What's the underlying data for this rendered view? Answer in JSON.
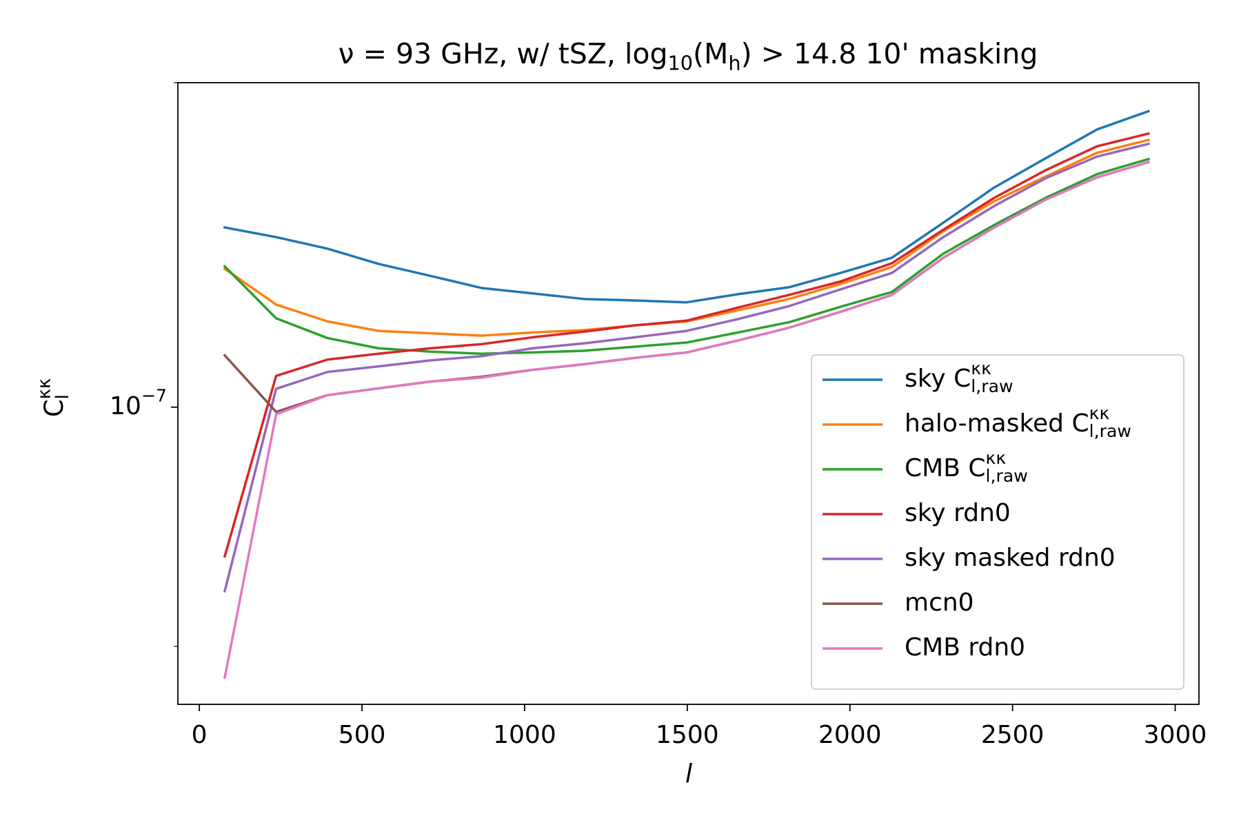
{
  "chart_data": {
    "type": "line",
    "title": "ν = 93 GHz, w/ tSZ, log_{10}(M_{h}) > 14.8 10' masking",
    "xlabel": "l",
    "ylabel": "C_{l}^{κκ}",
    "x": [
      78,
      236,
      394,
      551,
      709,
      867,
      1025,
      1182,
      1340,
      1498,
      1656,
      1813,
      1971,
      2129,
      2287,
      2444,
      2602,
      2760,
      2918
    ],
    "xlim": [
      -66,
      3073
    ],
    "xticks": [
      0,
      500,
      1000,
      1500,
      2000,
      2500,
      3000
    ],
    "ylim": [
      5.3e-08,
      2e-07
    ],
    "yscale": "log",
    "yticks": [
      {
        "value": 1e-07,
        "label": "10^{−7}"
      }
    ],
    "yminorticks": [
      6e-08,
      2e-07
    ],
    "grid": false,
    "legend": "lower right",
    "series": [
      {
        "name": "sky C_{l,raw}^{κκ}",
        "color": "#1f77b4",
        "values": [
          1.468e-07,
          1.438e-07,
          1.403e-07,
          1.358e-07,
          1.324e-07,
          1.29e-07,
          1.275e-07,
          1.26e-07,
          1.256e-07,
          1.251e-07,
          1.273e-07,
          1.292e-07,
          1.332e-07,
          1.376e-07,
          1.483e-07,
          1.599e-07,
          1.702e-07,
          1.81e-07,
          1.882e-07
        ]
      },
      {
        "name": "halo-masked C_{l,raw}^{κκ}",
        "color": "#ff7f0e",
        "values": [
          1.344e-07,
          1.245e-07,
          1.201e-07,
          1.177e-07,
          1.171e-07,
          1.165e-07,
          1.173e-07,
          1.179e-07,
          1.191e-07,
          1.201e-07,
          1.23e-07,
          1.26e-07,
          1.301e-07,
          1.349e-07,
          1.456e-07,
          1.553e-07,
          1.637e-07,
          1.722e-07,
          1.77e-07
        ]
      },
      {
        "name": "CMB C_{l,raw}^{κκ}",
        "color": "#2ca02c",
        "values": [
          1.351e-07,
          1.209e-07,
          1.159e-07,
          1.134e-07,
          1.126e-07,
          1.121e-07,
          1.124e-07,
          1.128e-07,
          1.138e-07,
          1.148e-07,
          1.173e-07,
          1.199e-07,
          1.239e-07,
          1.279e-07,
          1.388e-07,
          1.476e-07,
          1.564e-07,
          1.645e-07,
          1.699e-07
        ]
      },
      {
        "name": "sky rdn0",
        "color": "#d62728",
        "values": [
          7.27e-08,
          1.069e-07,
          1.107e-07,
          1.121e-07,
          1.134e-07,
          1.144e-07,
          1.161e-07,
          1.175e-07,
          1.191e-07,
          1.203e-07,
          1.237e-07,
          1.271e-07,
          1.308e-07,
          1.36e-07,
          1.461e-07,
          1.564e-07,
          1.659e-07,
          1.746e-07,
          1.794e-07
        ]
      },
      {
        "name": "sky masked rdn0",
        "color": "#9467bd",
        "values": [
          6.75e-08,
          1.04e-07,
          1.078e-07,
          1.091e-07,
          1.105e-07,
          1.115e-07,
          1.134e-07,
          1.146e-07,
          1.161e-07,
          1.177e-07,
          1.207e-07,
          1.241e-07,
          1.286e-07,
          1.332e-07,
          1.438e-07,
          1.537e-07,
          1.631e-07,
          1.708e-07,
          1.755e-07
        ]
      },
      {
        "name": "mcn0",
        "color": "#8c564b",
        "values": [
          1.117e-07,
          9.9e-08,
          1.026e-07,
          1.041e-07,
          1.056e-07,
          1.067e-07,
          1.083e-07,
          1.096e-07,
          1.111e-07,
          1.124e-07,
          1.153e-07,
          1.185e-07,
          1.226e-07,
          1.271e-07,
          1.376e-07,
          1.468e-07,
          1.558e-07,
          1.634e-07,
          1.688e-07
        ]
      },
      {
        "name": "CMB rdn0",
        "color": "#e377c2",
        "values": [
          5.61e-08,
          9.85e-08,
          1.026e-07,
          1.041e-07,
          1.056e-07,
          1.065e-07,
          1.083e-07,
          1.096e-07,
          1.111e-07,
          1.124e-07,
          1.153e-07,
          1.185e-07,
          1.226e-07,
          1.271e-07,
          1.376e-07,
          1.468e-07,
          1.558e-07,
          1.634e-07,
          1.688e-07
        ]
      }
    ]
  }
}
